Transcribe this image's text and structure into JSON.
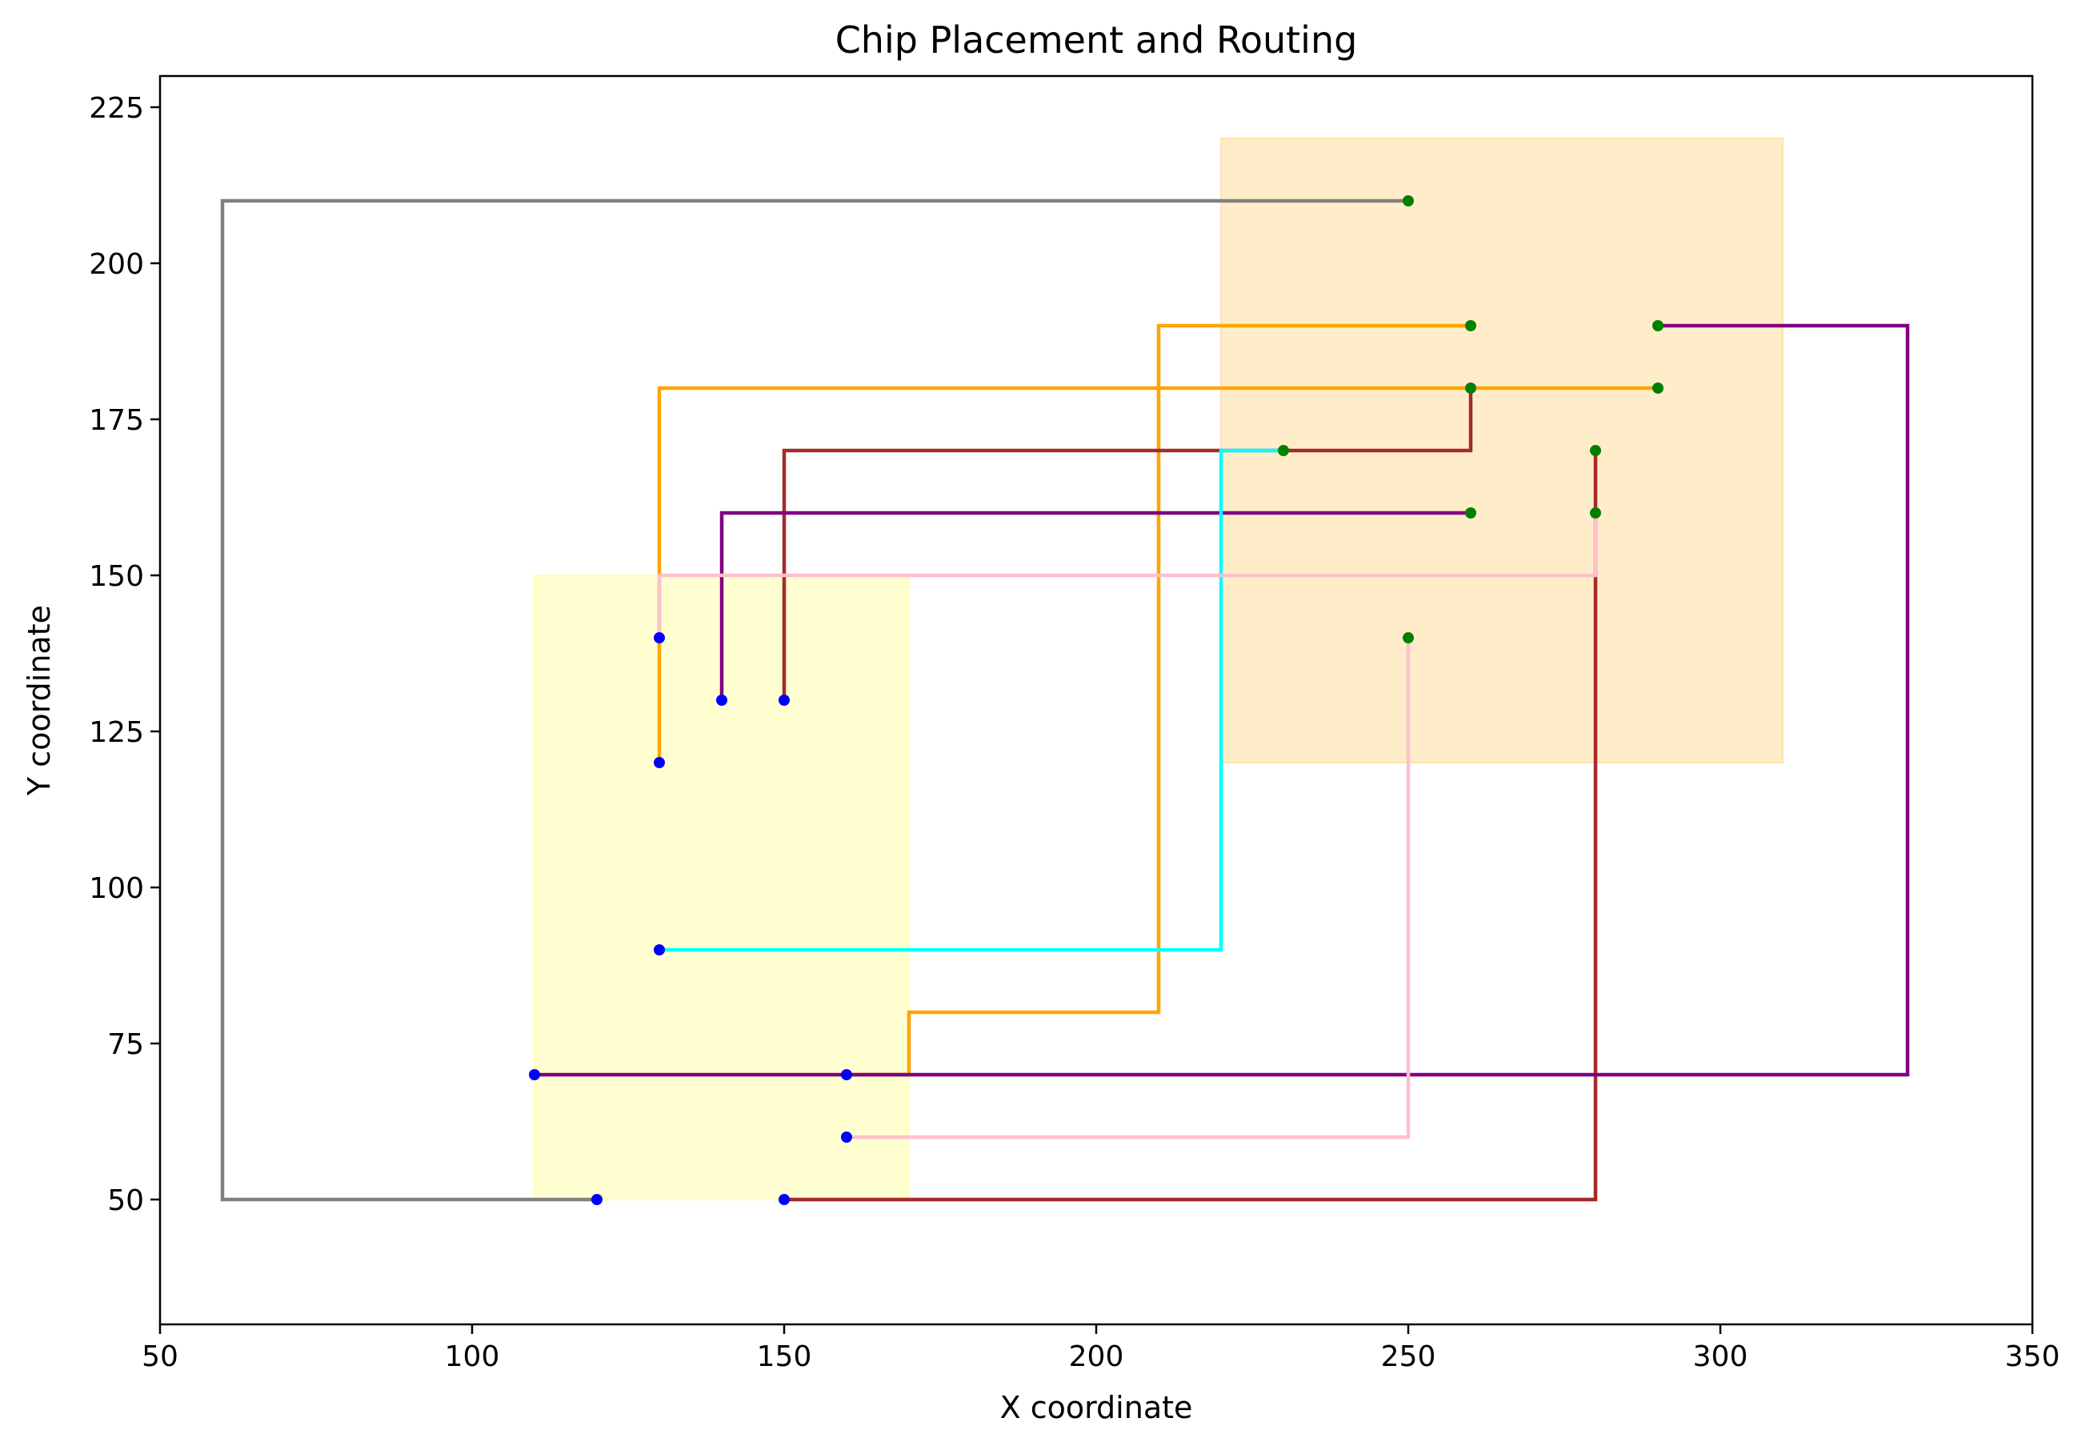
{
  "chart_data": {
    "type": "line",
    "title": "Chip Placement and Routing",
    "xlabel": "X coordinate",
    "ylabel": "Y coordinate",
    "xlim": [
      50,
      350
    ],
    "ylim": [
      30,
      230
    ],
    "xticks": [
      50,
      100,
      150,
      200,
      250,
      300,
      350
    ],
    "yticks": [
      50,
      75,
      100,
      125,
      150,
      175,
      200,
      225
    ],
    "grid": false,
    "legend": "none",
    "regions": [
      {
        "x": [
          110,
          170
        ],
        "y": [
          50,
          150
        ],
        "color": "#ffff99"
      },
      {
        "x": [
          220,
          310
        ],
        "y": [
          120,
          220
        ],
        "color": "#ffd68a"
      }
    ],
    "series": [
      {
        "color": "#808080",
        "points": [
          [
            120,
            50
          ],
          [
            60,
            50
          ],
          [
            60,
            210
          ],
          [
            250,
            210
          ]
        ]
      },
      {
        "color": "#ffa500",
        "points": [
          [
            160,
            70
          ],
          [
            170,
            70
          ],
          [
            170,
            80
          ],
          [
            210,
            80
          ],
          [
            210,
            190
          ],
          [
            260,
            190
          ]
        ]
      },
      {
        "color": "#ffa500",
        "points": [
          [
            130,
            120
          ],
          [
            130,
            180
          ],
          [
            290,
            180
          ]
        ]
      },
      {
        "color": "#a52a2a",
        "points": [
          [
            150,
            130
          ],
          [
            150,
            170
          ],
          [
            260,
            170
          ],
          [
            260,
            180
          ]
        ]
      },
      {
        "color": "#a52a2a",
        "points": [
          [
            150,
            50
          ],
          [
            280,
            50
          ],
          [
            280,
            170
          ]
        ]
      },
      {
        "color": "#800080",
        "points": [
          [
            140,
            130
          ],
          [
            140,
            160
          ],
          [
            260,
            160
          ]
        ]
      },
      {
        "color": "#800080",
        "points": [
          [
            110,
            70
          ],
          [
            330,
            70
          ],
          [
            330,
            190
          ],
          [
            290,
            190
          ]
        ]
      },
      {
        "color": "#00ffff",
        "points": [
          [
            130,
            90
          ],
          [
            220,
            90
          ],
          [
            220,
            170
          ],
          [
            230,
            170
          ]
        ]
      },
      {
        "color": "#ffc0cb",
        "points": [
          [
            130,
            140
          ],
          [
            130,
            150
          ],
          [
            280,
            150
          ],
          [
            280,
            160
          ]
        ]
      },
      {
        "color": "#ffc0cb",
        "points": [
          [
            160,
            60
          ],
          [
            250,
            60
          ],
          [
            250,
            140
          ]
        ]
      }
    ],
    "pins_source": {
      "color": "#0000ff",
      "points": [
        [
          120,
          50
        ],
        [
          150,
          50
        ],
        [
          160,
          60
        ],
        [
          110,
          70
        ],
        [
          160,
          70
        ],
        [
          130,
          90
        ],
        [
          130,
          120
        ],
        [
          140,
          130
        ],
        [
          150,
          130
        ],
        [
          130,
          140
        ]
      ]
    },
    "pins_target": {
      "color": "#008000",
      "points": [
        [
          250,
          210
        ],
        [
          260,
          190
        ],
        [
          290,
          190
        ],
        [
          260,
          180
        ],
        [
          290,
          180
        ],
        [
          230,
          170
        ],
        [
          280,
          170
        ],
        [
          260,
          160
        ],
        [
          280,
          160
        ],
        [
          250,
          140
        ]
      ]
    }
  }
}
